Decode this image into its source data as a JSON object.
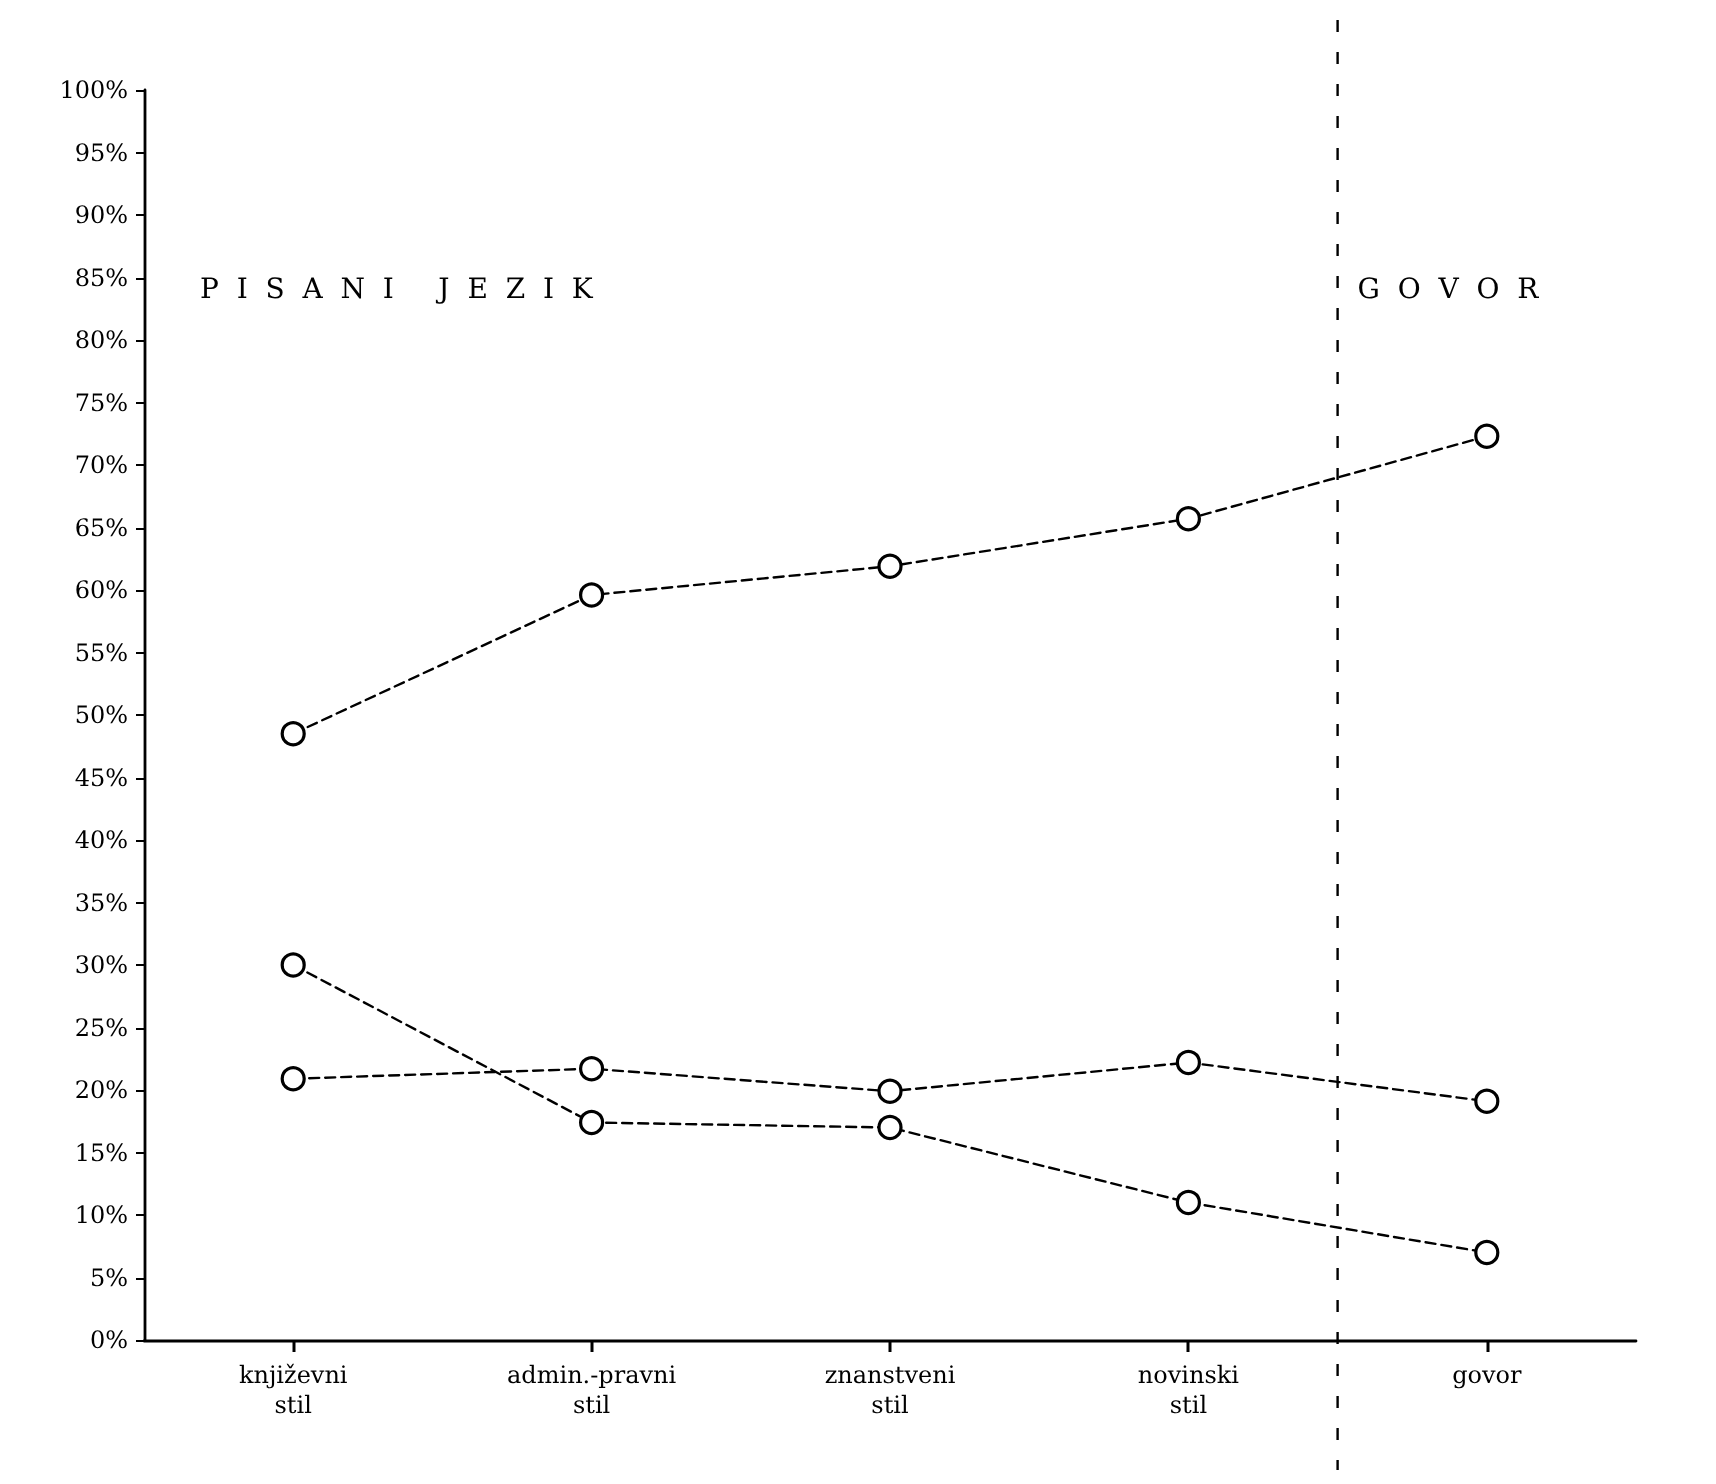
{
  "chart_data": {
    "type": "line",
    "categories": [
      "književni\nstil",
      "admin.-pravni\nstil",
      "znanstveni\nstil",
      "novinski\nstil",
      "govor"
    ],
    "series": [
      {
        "color": "#000000",
        "values": [
          48.5,
          59.6,
          61.9,
          65.7,
          72.3
        ]
      },
      {
        "color": "#000000",
        "values": [
          30.0,
          17.4,
          17.0,
          11.0,
          7.0
        ]
      },
      {
        "color": "#000000",
        "values": [
          20.9,
          21.7,
          19.9,
          22.2,
          19.1
        ]
      }
    ],
    "ylim": [
      0,
      100
    ],
    "yticks": [
      {
        "value": 0,
        "label": "0%"
      },
      {
        "value": 5,
        "label": "5%"
      },
      {
        "value": 10,
        "label": "10%"
      },
      {
        "value": 15,
        "label": "15%"
      },
      {
        "value": 20,
        "label": "20%"
      },
      {
        "value": 25,
        "label": "25%"
      },
      {
        "value": 30,
        "label": "30%"
      },
      {
        "value": 35,
        "label": "35%"
      },
      {
        "value": 40,
        "label": "40%"
      },
      {
        "value": 45,
        "label": "45%"
      },
      {
        "value": 50,
        "label": "50%"
      },
      {
        "value": 55,
        "label": "55%"
      },
      {
        "value": 60,
        "label": "60%"
      },
      {
        "value": 65,
        "label": "65%"
      },
      {
        "value": 70,
        "label": "70%"
      },
      {
        "value": 75,
        "label": "75%"
      },
      {
        "value": 80,
        "label": "80%"
      },
      {
        "value": 85,
        "label": "85%"
      },
      {
        "value": 90,
        "label": "90%"
      },
      {
        "value": 95,
        "label": "95%"
      },
      {
        "value": 100,
        "label": "100%"
      }
    ],
    "annotations": [
      "P  I  S  A  N  I     J  E  Z  I  K",
      "G  O  V  O  R"
    ],
    "grid": false,
    "marker": "circle",
    "line_style": "dashed"
  }
}
